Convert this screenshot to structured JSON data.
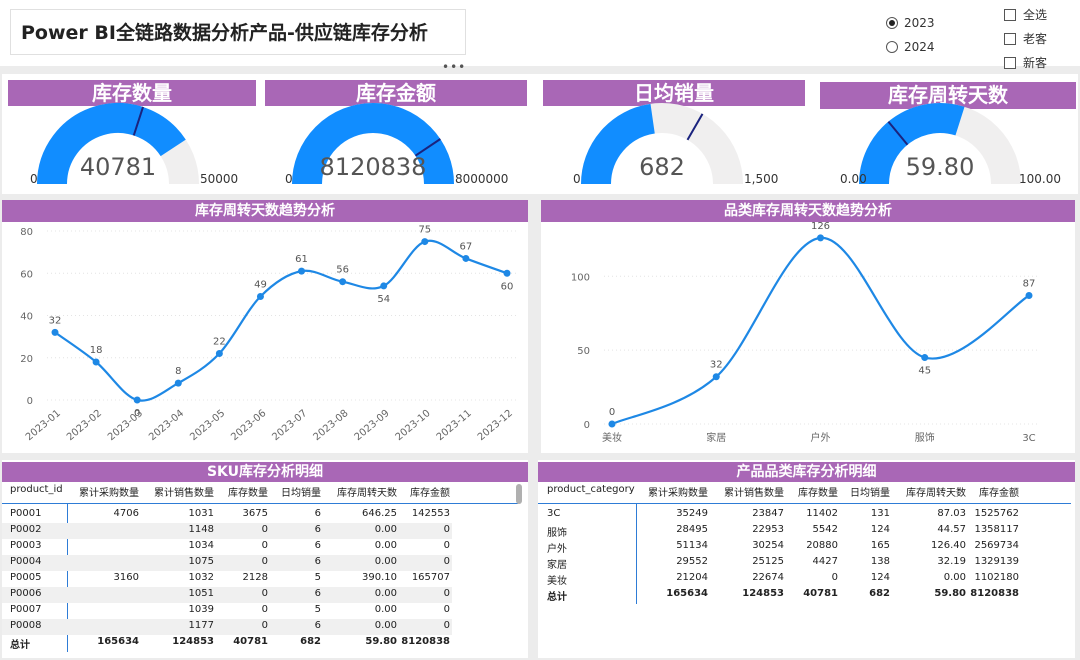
{
  "header": {
    "title": "Power BI全链路数据分析产品-供应链库存分析",
    "more": "•••"
  },
  "year_filter": [
    {
      "label": "2023",
      "selected": true
    },
    {
      "label": "2024",
      "selected": false
    }
  ],
  "customer_filter": [
    {
      "label": "全选"
    },
    {
      "label": "老客"
    },
    {
      "label": "新客"
    }
  ],
  "gauges": [
    {
      "title": "库存数量",
      "value_text": "40781",
      "min_text": "0",
      "max_text": "50000",
      "value": 40781,
      "max": 50000,
      "target": 30000
    },
    {
      "title": "库存金额",
      "value_text": "8120838",
      "min_text": "0",
      "max_text": "8000000",
      "value": 8120838,
      "max": 8000000,
      "target": 6500000
    },
    {
      "title": "日均销量",
      "value_text": "682",
      "min_text": "0",
      "max_text": "1,500",
      "value": 682,
      "max": 1500,
      "target": 1000
    },
    {
      "title": "库存周转天数",
      "value_text": "59.80",
      "min_text": "0.00",
      "max_text": "100.00",
      "value": 59.8,
      "max": 100,
      "target": 28
    }
  ],
  "colors": {
    "accent": "#a967b6",
    "series": "#1e88e5",
    "gauge_fill": "#118dff",
    "gauge_bg": "#f0efef",
    "target": "#1a237e"
  },
  "chart_data": [
    {
      "type": "line",
      "title": "库存周转天数趋势分析",
      "x": [
        "2023-01",
        "2023-02",
        "2023-03",
        "2023-04",
        "2023-05",
        "2023-06",
        "2023-07",
        "2023-08",
        "2023-09",
        "2023-10",
        "2023-11",
        "2023-12"
      ],
      "values": [
        32,
        18,
        0,
        8,
        22,
        49,
        61,
        56,
        54,
        75,
        67,
        60
      ],
      "data_labels": [
        "32",
        "18",
        "0",
        "8",
        "22",
        "49",
        "61",
        "56",
        "54",
        "75",
        "67",
        "60"
      ],
      "yticks": [
        "0",
        "20",
        "40",
        "60",
        "80"
      ],
      "ylim": [
        0,
        80
      ],
      "grid": true
    },
    {
      "type": "line",
      "title": "品类库存周转天数趋势分析",
      "x": [
        "美妆",
        "家居",
        "户外",
        "服饰",
        "3C"
      ],
      "values": [
        0,
        32,
        126,
        45,
        87
      ],
      "data_labels": [
        "0",
        "32",
        "126",
        "45",
        "87"
      ],
      "yticks": [
        "0",
        "50",
        "100"
      ],
      "ylim": [
        0,
        130
      ],
      "grid": true
    }
  ],
  "sku_table": {
    "title": "SKU库存分析明细",
    "columns": [
      "product_id",
      "累计采购数量",
      "累计销售数量",
      "库存数量",
      "日均销量",
      "库存周转天数",
      "库存金额"
    ],
    "rows": [
      [
        "P0001",
        "4706",
        "1031",
        "3675",
        "6",
        "646.25",
        "142553"
      ],
      [
        "P0002",
        "",
        "1148",
        "0",
        "6",
        "0.00",
        "0"
      ],
      [
        "P0003",
        "",
        "1034",
        "0",
        "6",
        "0.00",
        "0"
      ],
      [
        "P0004",
        "",
        "1075",
        "0",
        "6",
        "0.00",
        "0"
      ],
      [
        "P0005",
        "3160",
        "1032",
        "2128",
        "5",
        "390.10",
        "165707"
      ],
      [
        "P0006",
        "",
        "1051",
        "0",
        "6",
        "0.00",
        "0"
      ],
      [
        "P0007",
        "",
        "1039",
        "0",
        "5",
        "0.00",
        "0"
      ],
      [
        "P0008",
        "",
        "1177",
        "0",
        "6",
        "0.00",
        "0"
      ]
    ],
    "total": [
      "总计",
      "165634",
      "124853",
      "40781",
      "682",
      "59.80",
      "8120838"
    ]
  },
  "category_table": {
    "title": "产品品类库存分析明细",
    "columns": [
      "product_category",
      "累计采购数量",
      "累计销售数量",
      "库存数量",
      "日均销量",
      "库存周转天数",
      "库存金额"
    ],
    "rows": [
      [
        "3C",
        "35249",
        "23847",
        "11402",
        "131",
        "87.03",
        "1525762"
      ],
      [
        "服饰",
        "28495",
        "22953",
        "5542",
        "124",
        "44.57",
        "1358117"
      ],
      [
        "户外",
        "51134",
        "30254",
        "20880",
        "165",
        "126.40",
        "2569734"
      ],
      [
        "家居",
        "29552",
        "25125",
        "4427",
        "138",
        "32.19",
        "1329139"
      ],
      [
        "美妆",
        "21204",
        "22674",
        "0",
        "124",
        "0.00",
        "1102180"
      ]
    ],
    "total": [
      "总计",
      "165634",
      "124853",
      "40781",
      "682",
      "59.80",
      "8120838"
    ]
  }
}
